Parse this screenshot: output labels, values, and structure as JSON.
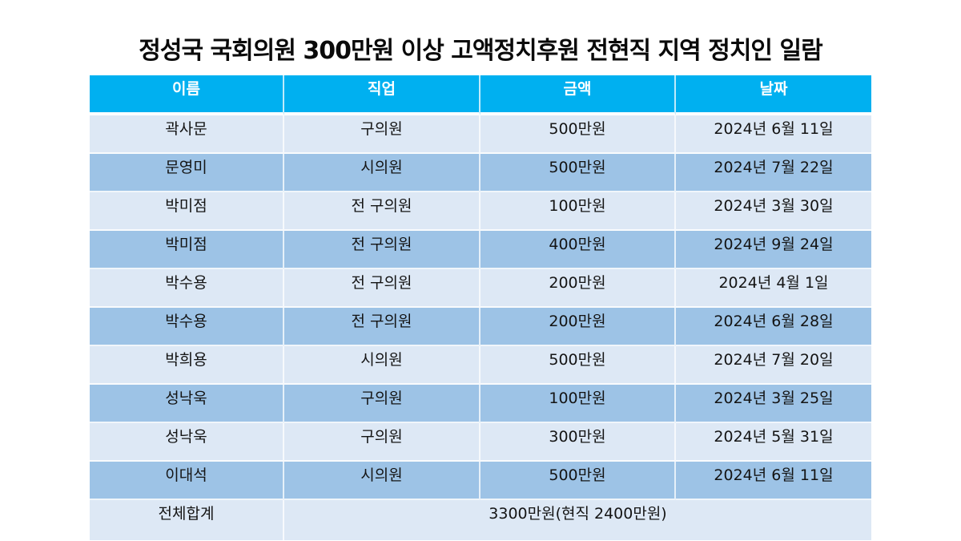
{
  "title": "정성국 국회의원 300만원 이상 고액정치후원 전현직 지역 정치인 일람",
  "colors": {
    "header_bg": "#00b0f0",
    "row_light": "#dde8f5",
    "row_dark": "#9dc3e6",
    "header_text": "#ffffff",
    "body_text": "#141414"
  },
  "table": {
    "headers": [
      "이름",
      "직업",
      "금액",
      "날짜"
    ],
    "rows": [
      {
        "name": "곽사문",
        "job": "구의원",
        "amount": "500만원",
        "date": "2024년 6월 11일"
      },
      {
        "name": "문영미",
        "job": "시의원",
        "amount": "500만원",
        "date": "2024년 7월 22일"
      },
      {
        "name": "박미점",
        "job": "전 구의원",
        "amount": "100만원",
        "date": "2024년 3월 30일"
      },
      {
        "name": "박미점",
        "job": "전 구의원",
        "amount": "400만원",
        "date": "2024년 9월 24일"
      },
      {
        "name": "박수용",
        "job": "전 구의원",
        "amount": "200만원",
        "date": "2024년 4월 1일"
      },
      {
        "name": "박수용",
        "job": "전 구의원",
        "amount": "200만원",
        "date": "2024년 6월 28일"
      },
      {
        "name": "박희용",
        "job": "시의원",
        "amount": "500만원",
        "date": "2024년 7월 20일"
      },
      {
        "name": "성낙욱",
        "job": "구의원",
        "amount": "100만원",
        "date": "2024년 3월 25일"
      },
      {
        "name": "성낙욱",
        "job": "구의원",
        "amount": "300만원",
        "date": "2024년 5월 31일"
      },
      {
        "name": "이대석",
        "job": "시의원",
        "amount": "500만원",
        "date": "2024년 6월 11일"
      }
    ],
    "total": {
      "label": "전체합계",
      "value": "3300만원(현직 2400만원)"
    }
  }
}
